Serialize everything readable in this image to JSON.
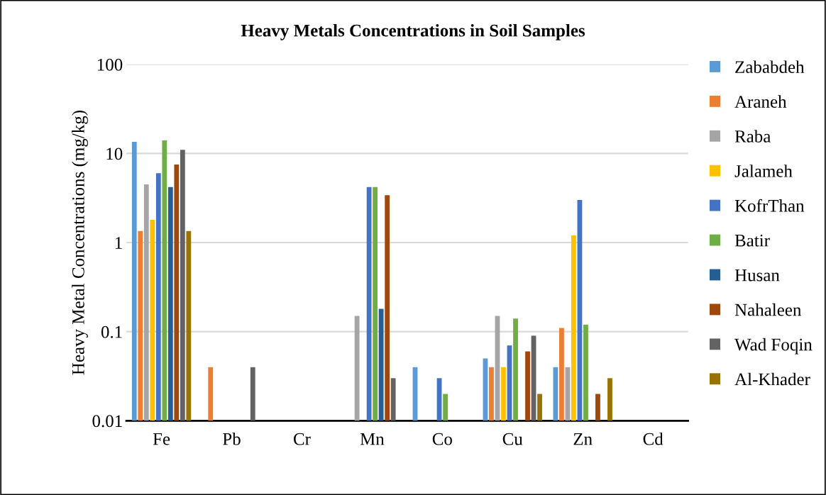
{
  "chart_data": {
    "type": "bar",
    "title": "Heavy Metals Concentrations in Soil Samples",
    "ylabel": "Heavy Metal Concentrations (mg/kg)",
    "categories": [
      "Fe",
      "Pb",
      "Cr",
      "Mn",
      "Co",
      "Cu",
      "Zn",
      "Cd"
    ],
    "series": [
      {
        "name": "Zababdeh",
        "color": "#5b9bd5",
        "values": [
          13.5,
          null,
          null,
          null,
          0.04,
          0.05,
          0.04,
          null
        ]
      },
      {
        "name": "Araneh",
        "color": "#ed7d31",
        "values": [
          1.35,
          0.04,
          null,
          null,
          null,
          0.04,
          0.11,
          null
        ]
      },
      {
        "name": "Raba",
        "color": "#a5a5a5",
        "values": [
          4.5,
          null,
          null,
          0.15,
          null,
          0.15,
          0.04,
          null
        ]
      },
      {
        "name": "Jalameh",
        "color": "#ffc000",
        "values": [
          1.8,
          null,
          null,
          null,
          null,
          0.04,
          1.2,
          null
        ]
      },
      {
        "name": "KofrThan",
        "color": "#4472c4",
        "values": [
          6,
          null,
          null,
          4.2,
          0.03,
          0.07,
          3,
          null
        ]
      },
      {
        "name": "Batir",
        "color": "#70ad47",
        "values": [
          14,
          null,
          null,
          4.2,
          0.02,
          0.14,
          0.12,
          null
        ]
      },
      {
        "name": "Husan",
        "color": "#255e91",
        "values": [
          4.2,
          null,
          null,
          0.18,
          null,
          null,
          null,
          null
        ]
      },
      {
        "name": "Nahaleen",
        "color": "#9e480e",
        "values": [
          7.5,
          null,
          null,
          3.4,
          null,
          0.06,
          0.02,
          null
        ]
      },
      {
        "name": "Wad Foqin",
        "color": "#636363",
        "values": [
          11,
          0.04,
          null,
          0.03,
          null,
          0.09,
          null,
          null
        ]
      },
      {
        "name": "Al-Khader",
        "color": "#997300",
        "values": [
          1.35,
          null,
          null,
          null,
          null,
          0.02,
          0.03,
          null
        ]
      }
    ],
    "log": "y",
    "ylim": [
      0.01,
      100
    ],
    "yticks": [
      0.01,
      0.1,
      1,
      10,
      100
    ],
    "grid": "y",
    "legend": "right"
  }
}
